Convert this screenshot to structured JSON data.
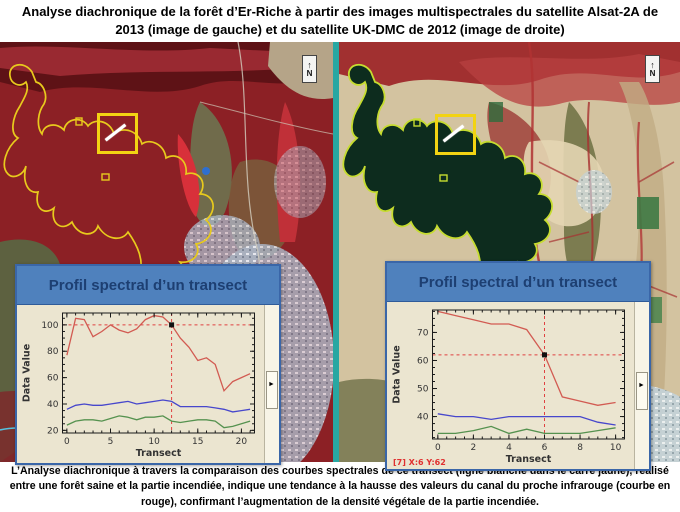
{
  "title": "Analyse diachronique de la forêt d’Er-Riche à partir des images multispectrales du satellite Alsat-2A  de 2013 (image de gauche) et du satellite UK-DMC de 2012 (image de droite)",
  "caption": "L’Analyse diachronique à travers la comparaison des courbes spectrales de ce transect (ligne blanche dans le carré jaune), réalisé entre une forêt saine et la partie incendiée, indique une tendance à la  hausse des valeurs du canal du proche infrarouge (courbe en rouge), confirmant l’augmentation de la densité végétale de la partie incendiée.",
  "north_label": "N",
  "colors": {
    "teal_border": "#28a7a2",
    "panel_header_blue": "#4f81bd",
    "panel_title_text": "#1d3f72",
    "plot_background": "#ebe5d0",
    "nir_curve_red": "#d25b52",
    "curve_blue": "#4747cc",
    "curve_green": "#55924f",
    "crosshair_red": "#e04040",
    "transect_square_yellow": "#f2d313",
    "forest_outline_yellow": "#e8ca1d"
  },
  "chart_data": [
    {
      "type": "line",
      "title": "Profil spectral d’un transect",
      "xlabel": "Transect",
      "ylabel": "Data Value",
      "x": [
        0,
        1,
        2,
        3,
        4,
        5,
        6,
        7,
        8,
        9,
        10,
        11,
        12,
        13,
        14,
        15,
        16,
        17,
        18,
        19,
        20,
        21
      ],
      "series": [
        {
          "name": "proche infrarouge (courbe en rouge)",
          "color": "#d25b52",
          "values": [
            77,
            105,
            104,
            91,
            95,
            100,
            96,
            94,
            97,
            104,
            107,
            106,
            100,
            90,
            83,
            73,
            75,
            70,
            50,
            57,
            60,
            63
          ]
        },
        {
          "name": "courbe bleue",
          "color": "#4747cc",
          "values": [
            36,
            39,
            40,
            39,
            39,
            40,
            41,
            42,
            40,
            41,
            42,
            43,
            42,
            38,
            38,
            38,
            38,
            37,
            36,
            34,
            35,
            36
          ]
        },
        {
          "name": "courbe verte",
          "color": "#55924f",
          "values": [
            24,
            27,
            28,
            28,
            27,
            29,
            31,
            30,
            28,
            30,
            30,
            31,
            27,
            26,
            27,
            28,
            28,
            27,
            22,
            23,
            25,
            27
          ]
        }
      ],
      "xlim": [
        -0.5,
        21.5
      ],
      "ylim": [
        18,
        109
      ],
      "xticks": [
        0,
        5,
        10,
        15,
        20
      ],
      "yticks": [
        20,
        40,
        60,
        80,
        100
      ],
      "x_minor_step": 1,
      "y_minor_step": 5,
      "grid": false,
      "legend": "none",
      "marker": {
        "x": 12,
        "y": 100
      }
    },
    {
      "type": "line",
      "title": "Profil spectral d’un transect",
      "xlabel": "Transect",
      "ylabel": "Data Value",
      "x": [
        0,
        1,
        2,
        3,
        4,
        5,
        6,
        7,
        8,
        9,
        10
      ],
      "series": [
        {
          "name": "proche infrarouge (courbe en rouge)",
          "color": "#d25b52",
          "values": [
            77.5,
            76,
            74.5,
            73,
            73,
            71,
            62,
            47,
            45.5,
            44,
            45
          ]
        },
        {
          "name": "courbe bleue",
          "color": "#4747cc",
          "values": [
            41,
            40,
            40,
            39,
            40,
            40,
            40,
            40,
            40,
            38,
            37
          ]
        },
        {
          "name": "courbe verte",
          "color": "#55924f",
          "values": [
            34,
            34,
            35,
            36.5,
            34,
            35.5,
            34,
            34,
            34,
            35,
            36
          ]
        }
      ],
      "xlim": [
        -0.3,
        10.5
      ],
      "ylim": [
        32,
        78
      ],
      "xticks": [
        0,
        2,
        4,
        6,
        8,
        10
      ],
      "yticks": [
        40,
        50,
        60,
        70
      ],
      "x_minor_step": 0.5,
      "y_minor_step": 2.5,
      "grid": false,
      "legend": "none",
      "marker": {
        "x": 6,
        "y": 62
      },
      "status_text": "[7] X:6 Y:62"
    }
  ]
}
